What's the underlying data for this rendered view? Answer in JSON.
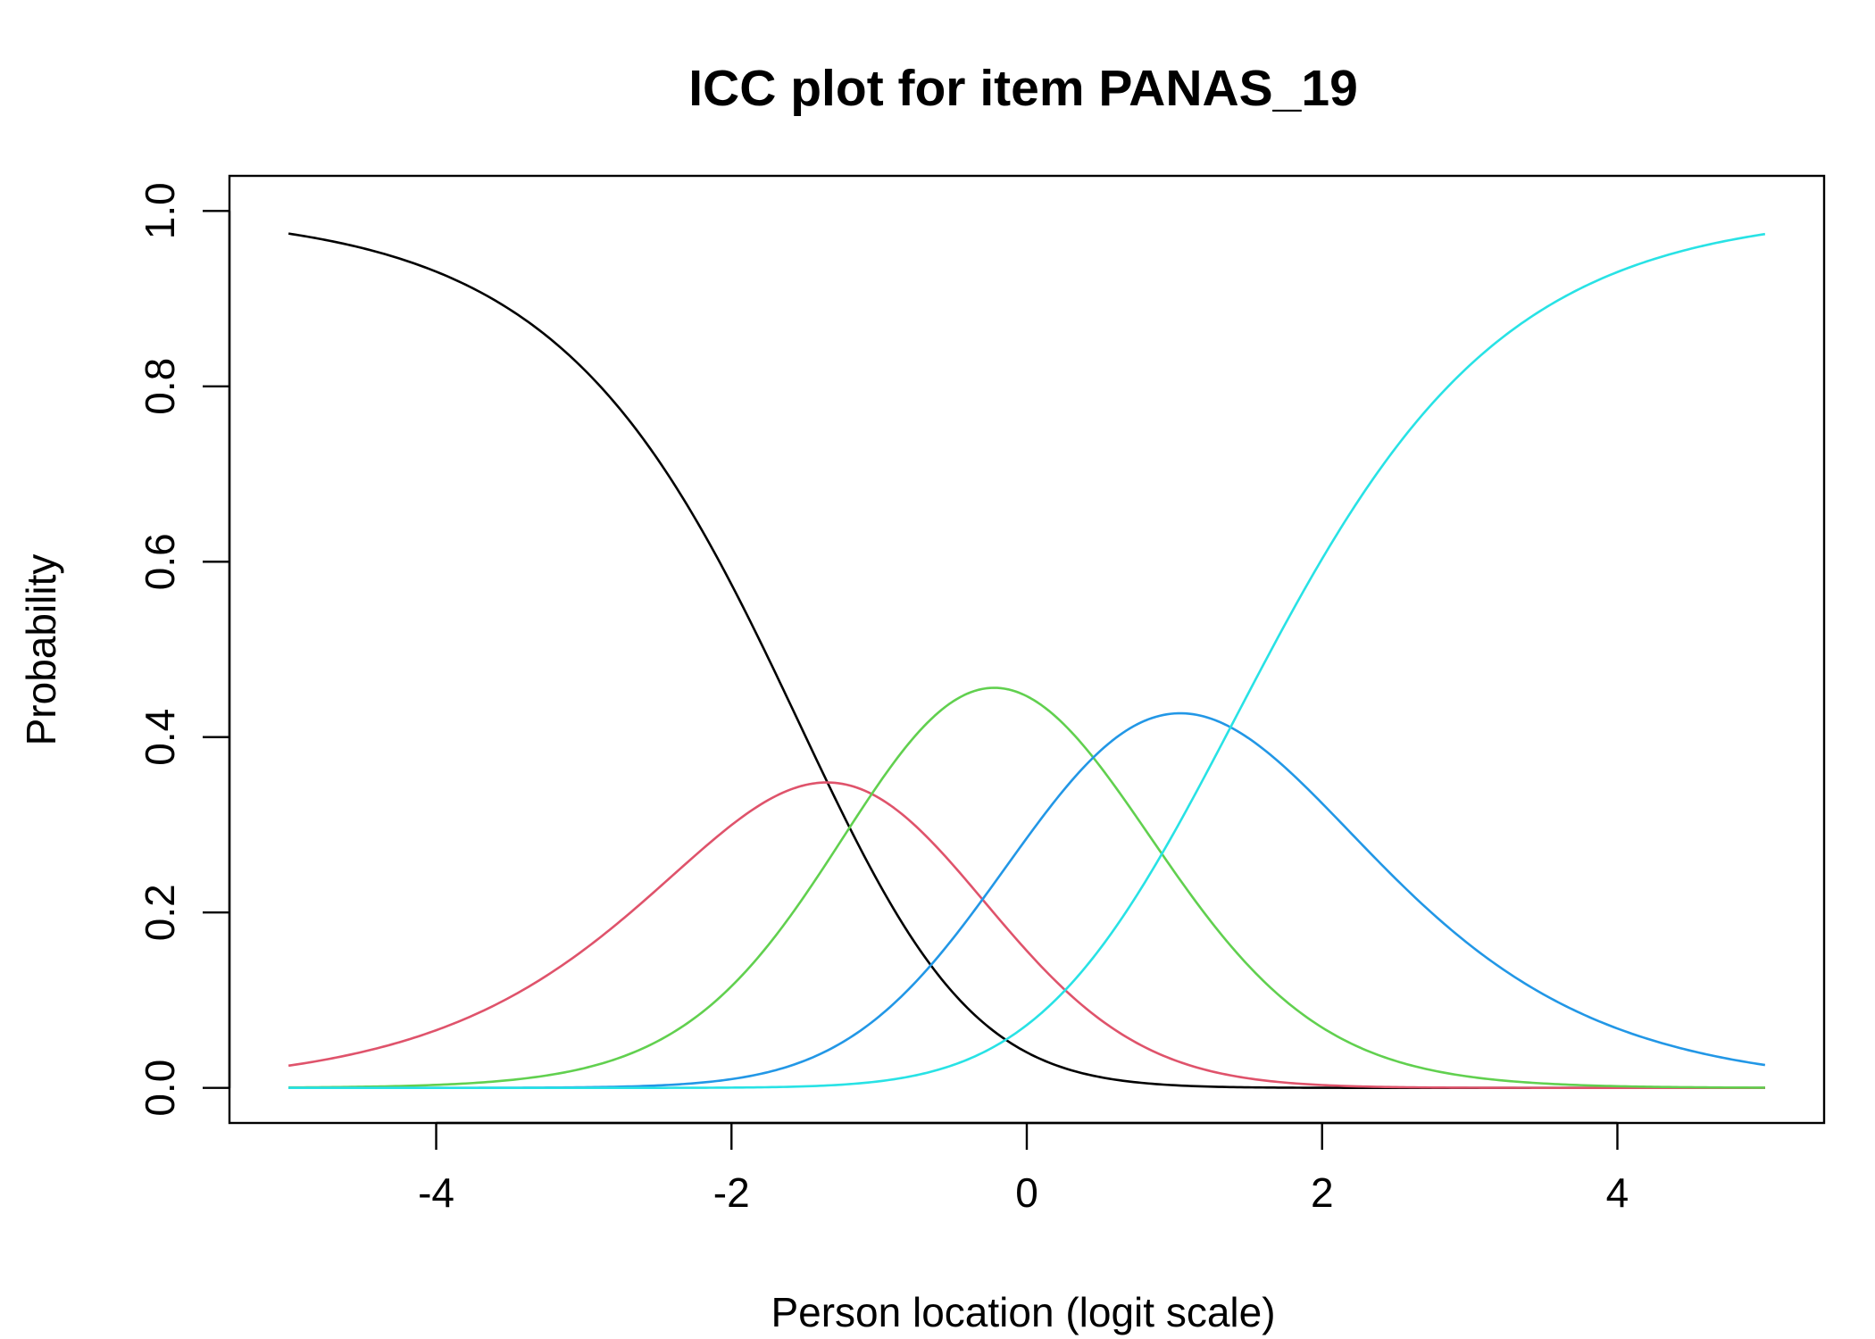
{
  "chart_data": {
    "type": "line",
    "title": "ICC plot for item PANAS_19",
    "xlabel": "Person location (logit scale)",
    "ylabel": "Probability",
    "xlim": [
      -5.4,
      5.4
    ],
    "ylim": [
      -0.04,
      1.04
    ],
    "xticks": [
      -4,
      -2,
      0,
      2,
      4
    ],
    "xtick_labels": [
      "-4",
      "-2",
      "0",
      "2",
      "4"
    ],
    "yticks": [
      0.0,
      0.2,
      0.4,
      0.6,
      0.8,
      1.0
    ],
    "ytick_labels": [
      "0.0",
      "0.2",
      "0.4",
      "0.6",
      "0.8",
      "1.0"
    ],
    "grid": false,
    "legend": "none",
    "model": "partial credit (Rasch) item category probability curves",
    "thresholds": [
      -1.35,
      -1.05,
      0.45,
      1.38
    ],
    "x_range": [
      -5,
      5
    ],
    "series": [
      {
        "color": "#000000",
        "category": 0
      },
      {
        "color": "#DF536B",
        "category": 1
      },
      {
        "color": "#61D04F",
        "category": 2
      },
      {
        "color": "#2297E6",
        "category": 3
      },
      {
        "color": "#28E2E5",
        "category": 4
      }
    ]
  }
}
